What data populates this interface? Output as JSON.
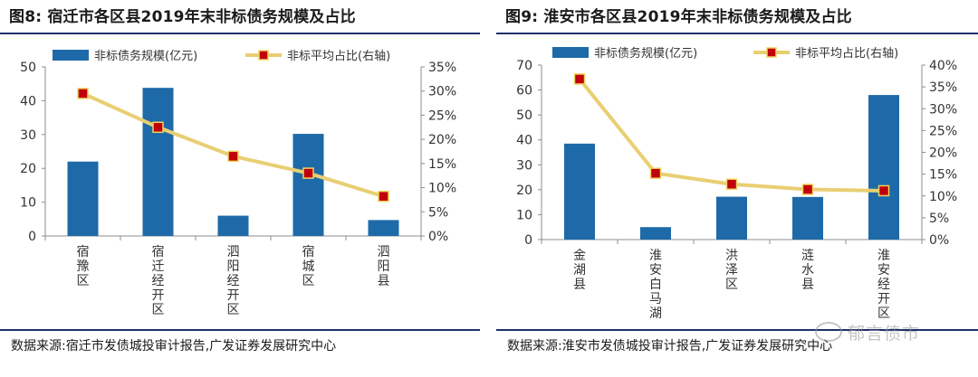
{
  "chart_data": [
    {
      "type": "bar+line",
      "figure_label": "图8:",
      "title": "宿迁市各区县2019年末非标债务规模及占比",
      "categories": [
        "宿豫区",
        "宿迁经开区",
        "泗阳经开区",
        "宿城区",
        "泗阳县"
      ],
      "series": [
        {
          "name": "非标债务规模(亿元)",
          "kind": "bar",
          "axis": "left",
          "values": [
            22,
            43.8,
            6,
            30.2,
            4.7
          ]
        },
        {
          "name": "非标平均占比(右轴)",
          "kind": "line",
          "axis": "right",
          "values": [
            29.5,
            22.5,
            16.5,
            13,
            8.2
          ]
        }
      ],
      "left_axis": {
        "range": [
          0,
          50
        ],
        "ticks": [
          "0",
          "10",
          "20",
          "30",
          "40",
          "50"
        ]
      },
      "right_axis": {
        "range": [
          0,
          35
        ],
        "ticks": [
          "0%",
          "5%",
          "10%",
          "15%",
          "20%",
          "25%",
          "30%",
          "35%"
        ]
      },
      "source": "数据来源:宿迁市发债城投审计报告,广发证券发展研究中心",
      "colors": {
        "bar": "#1e6aa8",
        "line": "#e8cf72",
        "marker_fill": "#c0000c",
        "marker_edge": "#f0d35e"
      }
    },
    {
      "type": "bar+line",
      "figure_label": "图9:",
      "title": "淮安市各区县2019年末非标债务规模及占比",
      "categories": [
        "金湖县",
        "淮安白马湖",
        "洪泽区",
        "涟水县",
        "淮安经开区"
      ],
      "series": [
        {
          "name": "非标债务规模(亿元)",
          "kind": "bar",
          "axis": "left",
          "values": [
            38.5,
            5,
            17.2,
            17.1,
            58
          ]
        },
        {
          "name": "非标平均占比(右轴)",
          "kind": "line",
          "axis": "right",
          "values": [
            36.8,
            15.2,
            12.7,
            11.5,
            11.2
          ]
        }
      ],
      "left_axis": {
        "range": [
          0,
          70
        ],
        "ticks": [
          "0",
          "10",
          "20",
          "30",
          "40",
          "50",
          "60",
          "70"
        ]
      },
      "right_axis": {
        "range": [
          0,
          40
        ],
        "ticks": [
          "0%",
          "5%",
          "10%",
          "15%",
          "20%",
          "25%",
          "30%",
          "35%",
          "40%"
        ]
      },
      "source": "数据来源:淮安市发债城投审计报告,广发证券发展研究中心",
      "colors": {
        "bar": "#1e6aa8",
        "line": "#e8cf72",
        "marker_fill": "#c0000c",
        "marker_edge": "#f0d35e"
      }
    }
  ],
  "watermark": {
    "text": "郁言债市",
    "icon": "wechat-icon"
  }
}
